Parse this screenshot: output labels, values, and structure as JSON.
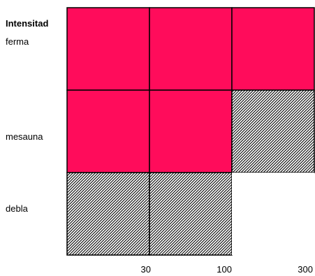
{
  "chart_data": {
    "type": "heatmap",
    "title": "Intensitad",
    "xlabel": "",
    "ylabel": "",
    "x_ticks": [
      "30",
      "100",
      "300"
    ],
    "rows": [
      "ferma",
      "mesauna",
      "debla"
    ],
    "columns": [
      "30",
      "100",
      "300"
    ],
    "legend": [],
    "cells": [
      [
        "solid",
        "solid",
        "solid"
      ],
      [
        "solid",
        "solid",
        "hatched"
      ],
      [
        "hatched",
        "hatched",
        "empty"
      ]
    ],
    "colors": {
      "solid": "#ff0c5b",
      "hatched": "#000000",
      "empty": "#ffffff",
      "border": "#000000"
    }
  }
}
